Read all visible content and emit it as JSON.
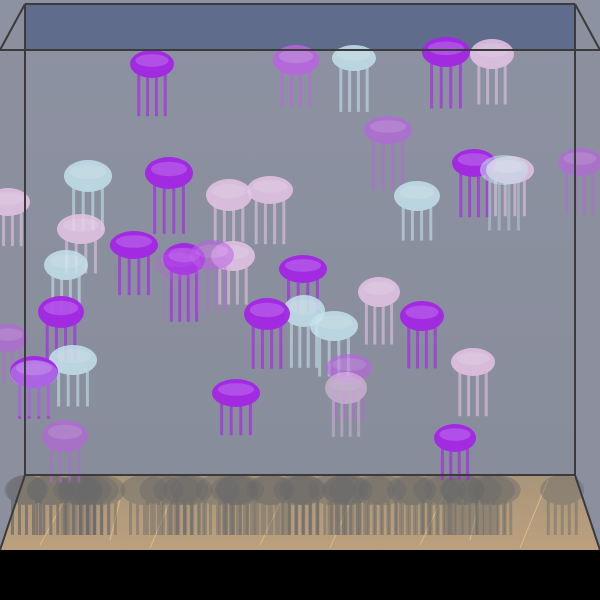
{
  "scene": {
    "kind": "jellyfish-aquarium",
    "colors": {
      "background": "#000000",
      "back_wall": "#8a8fa0",
      "top_band": "#5f6c8c",
      "sand": "#b49a7a",
      "sand_streak": "#e8c890",
      "shadow": "#707070",
      "edge": "#3a3a3a"
    },
    "jellyfish": [
      {
        "color": "#a426e6",
        "layer": "back"
      },
      {
        "color": "#bd60e6",
        "layer": "back"
      },
      {
        "color": "#c4e2ec",
        "layer": "back"
      },
      {
        "color": "#a426e6",
        "layer": "back"
      },
      {
        "color": "#e6c4e6",
        "layer": "back"
      },
      {
        "color": "#bd60e6",
        "layer": "back"
      },
      {
        "color": "#c4e2ec",
        "layer": "mid"
      },
      {
        "color": "#a426e6",
        "layer": "mid"
      },
      {
        "color": "#e6c4e6",
        "layer": "mid"
      },
      {
        "color": "#e6c4e6",
        "layer": "mid"
      },
      {
        "color": "#a426e6",
        "layer": "mid"
      },
      {
        "color": "#c4e2ec",
        "layer": "mid"
      },
      {
        "color": "#e6c4e6",
        "layer": "mid"
      },
      {
        "color": "#e6c4e6",
        "layer": "mid"
      },
      {
        "color": "#c4e2ec",
        "layer": "mid"
      },
      {
        "color": "#bd60e6",
        "layer": "back"
      },
      {
        "color": "#e6c4e6",
        "layer": "mid"
      },
      {
        "color": "#e6c4e6",
        "layer": "mid"
      },
      {
        "color": "#a426e6",
        "layer": "mid"
      },
      {
        "color": "#a426e6",
        "layer": "mid"
      },
      {
        "color": "#c4e2ec",
        "layer": "mid"
      },
      {
        "color": "#a426e6",
        "layer": "mid"
      },
      {
        "color": "#a426e6",
        "layer": "mid"
      },
      {
        "color": "#c4e2ec",
        "layer": "front"
      },
      {
        "color": "#e6c4e6",
        "layer": "mid"
      },
      {
        "color": "#a426e6",
        "layer": "mid"
      },
      {
        "color": "#bd60e6",
        "layer": "mid"
      },
      {
        "color": "#c4e2ec",
        "layer": "front"
      },
      {
        "color": "#c4e2ec",
        "layer": "front"
      },
      {
        "color": "#a426e6",
        "layer": "mid"
      },
      {
        "color": "#e6c4e6",
        "layer": "mid"
      },
      {
        "color": "#bd60e6",
        "layer": "back"
      },
      {
        "color": "#a426e6",
        "layer": "front"
      },
      {
        "color": "#c4e2ec",
        "layer": "front"
      },
      {
        "color": "#bd60e6",
        "layer": "back"
      },
      {
        "color": "#a426e6",
        "layer": "mid"
      },
      {
        "color": "#e6c4e6",
        "layer": "mid"
      },
      {
        "color": "#a426e6",
        "layer": "mid"
      },
      {
        "color": "#bd60e6",
        "layer": "back"
      },
      {
        "color": "#bd60e6",
        "layer": "back"
      }
    ]
  }
}
